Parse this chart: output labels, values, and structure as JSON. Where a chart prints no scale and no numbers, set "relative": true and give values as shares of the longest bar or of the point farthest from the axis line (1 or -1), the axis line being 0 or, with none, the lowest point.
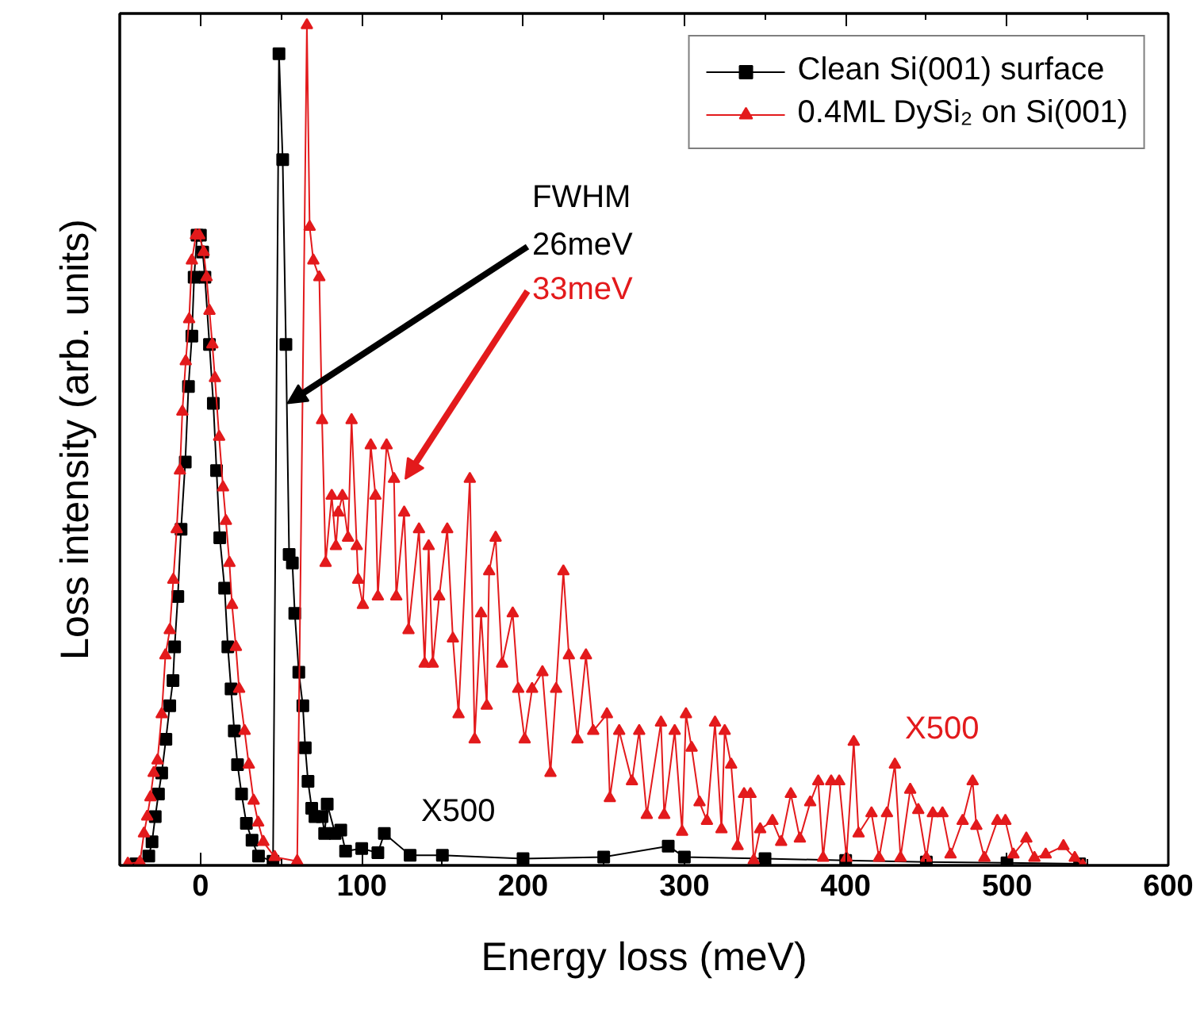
{
  "chart_data": {
    "type": "line",
    "relative": true,
    "xlabel": "Energy loss (meV)",
    "ylabel": "Loss intensity (arb. units)",
    "xlim": [
      -50,
      600
    ],
    "xticks": [
      0,
      100,
      200,
      300,
      400,
      500,
      600
    ],
    "tick_labels": "x",
    "grid": false,
    "legend": "top right",
    "line_style": "solid",
    "series": [
      {
        "name": "Clean Si(001) surface",
        "color": "#000000",
        "marker": "square",
        "x": [
          -40,
          -32,
          -30,
          -28,
          -26,
          -24,
          -21.4,
          -19,
          -17,
          -16,
          -14,
          -12,
          -9.4,
          -7.4,
          -5.3,
          -3.9,
          -2.1,
          0,
          1.4,
          2.8,
          5.6,
          8,
          10,
          12,
          15,
          17,
          19,
          21,
          23,
          25.5,
          28.5,
          32,
          36,
          45,
          48.7,
          51,
          53,
          55,
          57,
          58.5,
          61,
          63.5,
          65,
          66.7,
          69,
          71,
          75.4,
          77,
          78.6,
          83.5,
          87,
          90,
          100,
          110,
          114,
          130,
          150,
          200,
          250,
          290,
          300,
          350,
          400,
          450,
          500,
          545
        ],
        "values": [
          0.002,
          0.011,
          0.028,
          0.058,
          0.085,
          0.11,
          0.15,
          0.19,
          0.22,
          0.26,
          0.32,
          0.4,
          0.48,
          0.57,
          0.63,
          0.7,
          0.75,
          0.75,
          0.73,
          0.7,
          0.62,
          0.55,
          0.47,
          0.39,
          0.33,
          0.26,
          0.21,
          0.16,
          0.12,
          0.085,
          0.05,
          0.03,
          0.011,
          0.005,
          0.966,
          0.84,
          0.62,
          0.37,
          0.36,
          0.3,
          0.23,
          0.19,
          0.14,
          0.1,
          0.068,
          0.058,
          0.058,
          0.038,
          0.073,
          0.038,
          0.042,
          0.017,
          0.02,
          0.015,
          0.038,
          0.012,
          0.012,
          0.008,
          0.01,
          0.023,
          0.01,
          0.008,
          0.006,
          0.004,
          0.003,
          0.002
        ]
      },
      {
        "name": "0.4ML DySi₂ on Si(001)",
        "color": "#e31a1c",
        "marker": "triangle",
        "x": [
          -45,
          -37.5,
          -35,
          -33,
          -31,
          -29,
          -26.6,
          -24,
          -21.7,
          -19,
          -16.8,
          -14.7,
          -12.7,
          -11.2,
          -9.1,
          -7,
          -5.3,
          -2.8,
          -0.7,
          2,
          3.8,
          5.6,
          7.4,
          9,
          11.6,
          14,
          15.8,
          18,
          19.6,
          22,
          24,
          27.4,
          30,
          33,
          35.8,
          39,
          46,
          60,
          66,
          67.7,
          70,
          73.7,
          75.4,
          77.6,
          81.4,
          84,
          85.5,
          88,
          91.5,
          93.7,
          96.9,
          97.8,
          100.7,
          105.6,
          108.5,
          110,
          115.4,
          120,
          121.4,
          126.3,
          129,
          135.5,
          139,
          141.5,
          144,
          148,
          153,
          156.5,
          160,
          167,
          170,
          174,
          177.5,
          179,
          183,
          187,
          193.6,
          197,
          201,
          205.6,
          212,
          217,
          220.5,
          225,
          228.4,
          233.7,
          239,
          243.5,
          252,
          253.8,
          259.6,
          267.5,
          272,
          276.7,
          285.5,
          287.5,
          294,
          298.6,
          301,
          304.5,
          309.4,
          314,
          319,
          323,
          325,
          329,
          333,
          337,
          341,
          343,
          347,
          354.6,
          360,
          366,
          371.6,
          378,
          383,
          386,
          391,
          396,
          400.5,
          405,
          408,
          416,
          420.7,
          425.6,
          430.5,
          434,
          440,
          445,
          450,
          454,
          460,
          465,
          472.5,
          478.7,
          481,
          486,
          494,
          499,
          504,
          512,
          517,
          524,
          535,
          542,
          547
        ],
        "values": [
          0.002,
          0.004,
          0.038,
          0.058,
          0.081,
          0.11,
          0.125,
          0.18,
          0.25,
          0.28,
          0.34,
          0.4,
          0.47,
          0.54,
          0.6,
          0.65,
          0.72,
          0.75,
          0.75,
          0.73,
          0.7,
          0.66,
          0.62,
          0.58,
          0.51,
          0.45,
          0.41,
          0.36,
          0.31,
          0.26,
          0.21,
          0.16,
          0.12,
          0.077,
          0.051,
          0.028,
          0.01,
          0.005,
          1.0,
          0.76,
          0.72,
          0.7,
          0.53,
          0.36,
          0.44,
          0.38,
          0.42,
          0.44,
          0.39,
          0.53,
          0.38,
          0.34,
          0.31,
          0.5,
          0.44,
          0.32,
          0.5,
          0.46,
          0.32,
          0.42,
          0.28,
          0.4,
          0.24,
          0.38,
          0.24,
          0.32,
          0.4,
          0.27,
          0.18,
          0.46,
          0.15,
          0.3,
          0.19,
          0.35,
          0.39,
          0.24,
          0.3,
          0.21,
          0.15,
          0.21,
          0.23,
          0.11,
          0.21,
          0.35,
          0.25,
          0.15,
          0.25,
          0.16,
          0.18,
          0.08,
          0.16,
          0.1,
          0.16,
          0.06,
          0.17,
          0.06,
          0.16,
          0.04,
          0.18,
          0.14,
          0.075,
          0.053,
          0.17,
          0.043,
          0.16,
          0.12,
          0.023,
          0.085,
          0.085,
          0.006,
          0.043,
          0.053,
          0.028,
          0.085,
          0.032,
          0.075,
          0.1,
          0.009,
          0.1,
          0.1,
          0.009,
          0.147,
          0.038,
          0.062,
          0.009,
          0.062,
          0.12,
          0.009,
          0.09,
          0.066,
          0.009,
          0.062,
          0.062,
          0.013,
          0.053,
          0.1,
          0.047,
          0.009,
          0.053,
          0.053,
          0.013,
          0.032,
          0.009,
          0.013,
          0.023,
          0.009,
          0.0
        ]
      }
    ],
    "annotations": [
      "FWHM",
      {
        "text": "26meV",
        "x": 54,
        "y": 0.55
      },
      {
        "text": "33meV",
        "x": 127,
        "y": 0.46
      },
      "X500",
      "X500"
    ]
  }
}
